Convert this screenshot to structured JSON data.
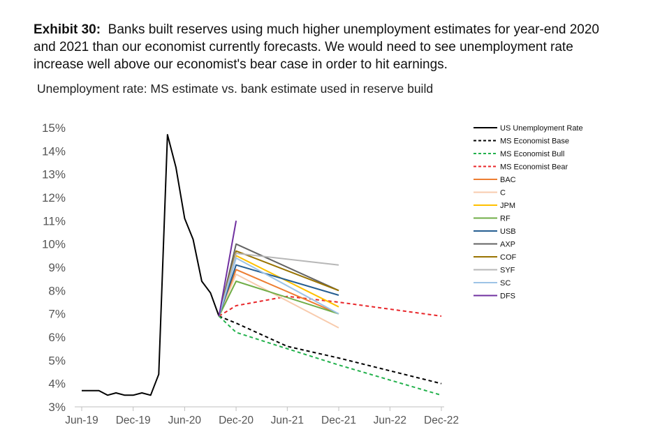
{
  "header": {
    "exhibit_label": "Exhibit 30:",
    "caption_text": "Banks built reserves using much higher unemployment estimates for year-end 2020 and 2021 than our economist currently forecasts. We would need to see unemployment rate increase well above our economist's bear case in order to hit earnings.",
    "subtitle": "Unemployment rate: MS estimate vs. bank estimate used in reserve build"
  },
  "chart_data": {
    "type": "line",
    "title": "Unemployment rate: MS estimate vs. bank estimate used in reserve build",
    "xlabel": "",
    "ylabel": "",
    "ylim": [
      3,
      15
    ],
    "y_ticks": [
      "3%",
      "4%",
      "5%",
      "6%",
      "7%",
      "8%",
      "9%",
      "10%",
      "11%",
      "12%",
      "13%",
      "14%",
      "15%"
    ],
    "x_ticks": [
      "Jun-19",
      "Dec-19",
      "Jun-20",
      "Dec-20",
      "Jun-21",
      "Dec-21",
      "Jun-22",
      "Dec-22"
    ],
    "legend_position": "top-right",
    "series": [
      {
        "name": "US Unemployment Rate",
        "color": "#000000",
        "dash": "solid",
        "points": [
          [
            "2019-06-01",
            3.7
          ],
          [
            "2019-07-01",
            3.7
          ],
          [
            "2019-08-01",
            3.7
          ],
          [
            "2019-09-01",
            3.5
          ],
          [
            "2019-10-01",
            3.6
          ],
          [
            "2019-11-01",
            3.5
          ],
          [
            "2019-12-01",
            3.5
          ],
          [
            "2020-01-01",
            3.6
          ],
          [
            "2020-02-01",
            3.5
          ],
          [
            "2020-03-01",
            4.4
          ],
          [
            "2020-04-01",
            14.7
          ],
          [
            "2020-05-01",
            13.3
          ],
          [
            "2020-06-01",
            11.1
          ],
          [
            "2020-07-01",
            10.2
          ],
          [
            "2020-08-01",
            8.4
          ],
          [
            "2020-09-01",
            7.9
          ],
          [
            "2020-10-01",
            6.9
          ]
        ]
      },
      {
        "name": "MS Economist Base",
        "color": "#000000",
        "dash": "dashed",
        "points": [
          [
            "2020-10-01",
            6.9
          ],
          [
            "2020-12-01",
            6.6
          ],
          [
            "2021-06-01",
            5.6
          ],
          [
            "2021-12-01",
            5.1
          ],
          [
            "2022-12-01",
            4.0
          ]
        ]
      },
      {
        "name": "MS Economist Bull",
        "color": "#22b14c",
        "dash": "dashed",
        "points": [
          [
            "2020-10-01",
            6.9
          ],
          [
            "2020-12-01",
            6.2
          ],
          [
            "2021-06-01",
            5.5
          ],
          [
            "2021-12-01",
            4.8
          ],
          [
            "2022-12-01",
            3.5
          ]
        ]
      },
      {
        "name": "MS Economist Bear",
        "color": "#e8262a",
        "dash": "dashed",
        "points": [
          [
            "2020-10-01",
            6.9
          ],
          [
            "2020-12-01",
            7.35
          ],
          [
            "2021-06-01",
            7.75
          ],
          [
            "2021-12-01",
            7.5
          ],
          [
            "2022-12-01",
            6.9
          ]
        ]
      },
      {
        "name": "BAC",
        "color": "#ed7d31",
        "dash": "solid",
        "points": [
          [
            "2020-10-01",
            6.9
          ],
          [
            "2020-12-01",
            8.9
          ],
          [
            "2021-12-01",
            7.0
          ]
        ]
      },
      {
        "name": "C",
        "color": "#f8cbad",
        "dash": "solid",
        "points": [
          [
            "2020-10-01",
            6.9
          ],
          [
            "2020-12-01",
            8.7
          ],
          [
            "2021-12-01",
            6.4
          ]
        ]
      },
      {
        "name": "JPM",
        "color": "#ffc000",
        "dash": "solid",
        "points": [
          [
            "2020-10-01",
            6.9
          ],
          [
            "2020-12-01",
            9.5
          ],
          [
            "2021-12-01",
            7.3
          ]
        ]
      },
      {
        "name": "RF",
        "color": "#70ad47",
        "dash": "solid",
        "points": [
          [
            "2020-10-01",
            6.9
          ],
          [
            "2020-12-01",
            8.4
          ],
          [
            "2021-12-01",
            7.0
          ]
        ]
      },
      {
        "name": "USB",
        "color": "#255e91",
        "dash": "solid",
        "points": [
          [
            "2020-10-01",
            6.9
          ],
          [
            "2020-12-01",
            9.1
          ],
          [
            "2021-12-01",
            7.8
          ]
        ]
      },
      {
        "name": "AXP",
        "color": "#636363",
        "dash": "solid",
        "points": [
          [
            "2020-10-01",
            6.9
          ],
          [
            "2020-12-01",
            10.0
          ],
          [
            "2021-12-01",
            8.0
          ]
        ]
      },
      {
        "name": "COF",
        "color": "#997300",
        "dash": "solid",
        "points": [
          [
            "2020-10-01",
            6.9
          ],
          [
            "2020-12-01",
            9.7
          ],
          [
            "2021-12-01",
            8.0
          ]
        ]
      },
      {
        "name": "SYF",
        "color": "#b7b7b7",
        "dash": "solid",
        "points": [
          [
            "2020-10-01",
            6.9
          ],
          [
            "2020-12-01",
            9.6
          ],
          [
            "2021-12-01",
            9.1
          ]
        ]
      },
      {
        "name": "SC",
        "color": "#9dc3e6",
        "dash": "solid",
        "points": [
          [
            "2020-10-01",
            6.9
          ],
          [
            "2020-12-01",
            9.4
          ],
          [
            "2021-12-01",
            7.0
          ]
        ]
      },
      {
        "name": "DFS",
        "color": "#7030a0",
        "dash": "solid",
        "points": [
          [
            "2020-10-01",
            6.9
          ],
          [
            "2020-12-01",
            11.0
          ]
        ]
      }
    ]
  }
}
